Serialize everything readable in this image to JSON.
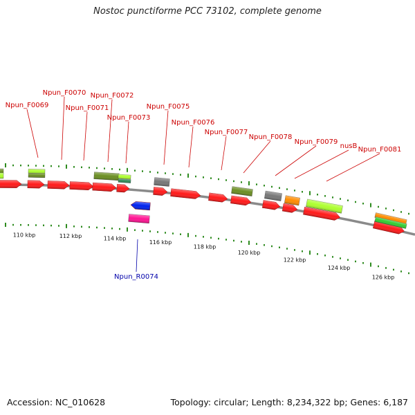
{
  "title": "Nostoc punctiforme PCC 73102, complete genome",
  "footer": {
    "accession": "Accession: NC_010628",
    "summary": "Topology: circular; Length: 8,234,322 bp; Genes: 6,187"
  },
  "colors": {
    "cds": "#ff1a1a",
    "rna": "#0022ee",
    "label_forward": "#cc0000",
    "label_reverse": "#0000aa",
    "ticks": "#2e8b1f",
    "backbone": "#8a8a8a"
  },
  "scale": {
    "labels": [
      "110 kbp",
      "112 kbp",
      "114 kbp",
      "116 kbp",
      "118 kbp",
      "120 kbp",
      "122 kbp",
      "124 kbp",
      "126 kbp"
    ]
  },
  "gene_labels": [
    {
      "name": "Npun_F0069",
      "strand": "+"
    },
    {
      "name": "Npun_F0070",
      "strand": "+"
    },
    {
      "name": "Npun_F0071",
      "strand": "+"
    },
    {
      "name": "Npun_F0072",
      "strand": "+"
    },
    {
      "name": "Npun_F0073",
      "strand": "+"
    },
    {
      "name": "Npun_F0075",
      "strand": "+"
    },
    {
      "name": "Npun_F0076",
      "strand": "+"
    },
    {
      "name": "Npun_F0077",
      "strand": "+"
    },
    {
      "name": "Npun_F0078",
      "strand": "+"
    },
    {
      "name": "Npun_F0079",
      "strand": "+"
    },
    {
      "name": "nusB",
      "strand": "+"
    },
    {
      "name": "Npun_F0081",
      "strand": "+"
    },
    {
      "name": "Npun_R0074",
      "strand": "-"
    }
  ]
}
